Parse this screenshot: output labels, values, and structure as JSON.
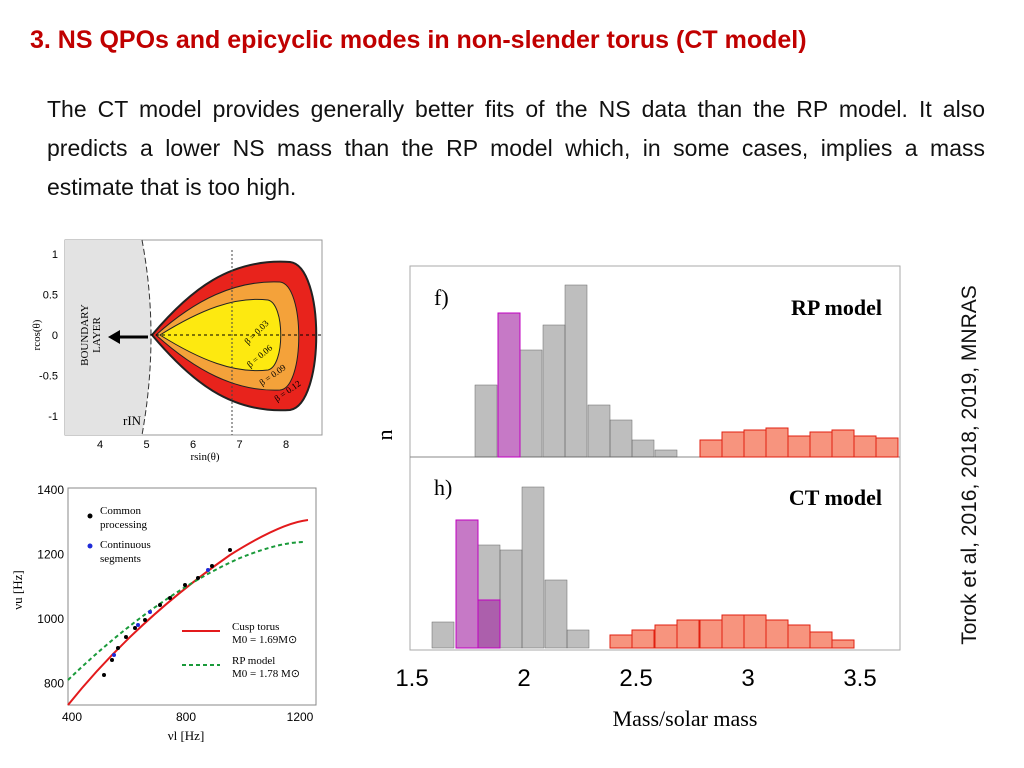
{
  "title": "3. NS QPOs and epicyclic modes in non-slender torus (CT model)",
  "body": "The CT model provides generally better fits of the NS data than the RP model. It also predicts a lower NS mass than the RP model which, in some cases, implies a mass estimate that is too high.",
  "figures": {
    "torus": {
      "yticks": [
        1,
        0.5,
        0,
        -0.5,
        -1
      ],
      "xticks": [
        4,
        5,
        6,
        7,
        8
      ],
      "xlabel": "rsin(θ)",
      "ylabel": "rcos(θ)",
      "boundary": [
        "BOUNDARY",
        "LAYER"
      ],
      "rin": "rIN",
      "beta": [
        "β = 0.03",
        "β = 0.06",
        "β = 0.09",
        "β = 0.12"
      ]
    },
    "frequencies": {
      "yticks": [
        1400,
        1200,
        1000,
        800
      ],
      "xticks": [
        400,
        800,
        1200
      ],
      "xlabel": "νl [Hz]",
      "ylabel": "νu [Hz]",
      "legend": [
        [
          "Common",
          "processing"
        ],
        [
          "Continuous",
          "segments"
        ]
      ],
      "models": [
        {
          "name": "Cusp torus",
          "mass": "M0 = 1.69M⊙"
        },
        {
          "name": "RP model",
          "mass": "M0 = 1.78 M⊙"
        }
      ]
    },
    "mass": {
      "panels": [
        {
          "tag": "f)",
          "label": "RP model"
        },
        {
          "tag": "h)",
          "label": "CT model"
        }
      ],
      "ylabel": "n",
      "xticks": [
        1.5,
        2,
        2.5,
        3,
        3.5
      ],
      "xlabel": "Mass/solar mass"
    }
  },
  "citation": "Torok et al, 2016, 2018, 2019, MNRAS"
}
